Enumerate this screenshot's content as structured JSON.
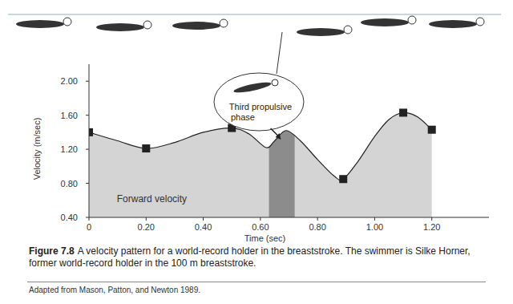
{
  "chart_data": {
    "type": "area",
    "y_label": "Velocity (m/sec)",
    "x_label": "Time (sec)",
    "xlim": [
      0,
      1.4
    ],
    "ylim": [
      0.4,
      2.2
    ],
    "xticks": [
      0,
      {
        "value": 0.2,
        "label": "0.20"
      },
      {
        "value": 0.4,
        "label": "0.40"
      },
      {
        "value": 0.6,
        "label": "0.60"
      },
      {
        "value": 0.8,
        "label": "0.80"
      },
      {
        "value": 1.0,
        "label": "1.00"
      },
      {
        "value": 1.2,
        "label": "1.20"
      }
    ],
    "yticks": [
      {
        "value": 0.4,
        "label": "0.40"
      },
      {
        "value": 0.8,
        "label": "0.80"
      },
      {
        "value": 1.2,
        "label": "1.20"
      },
      {
        "value": 1.6,
        "label": "1.60"
      },
      {
        "value": 2.0,
        "label": "2.00"
      }
    ],
    "grid": false,
    "series": [
      {
        "name": "Forward velocity",
        "type": "area",
        "color": "#d4d4d4",
        "x": [
          0,
          0.1,
          0.2,
          0.3,
          0.4,
          0.5,
          0.56,
          0.62,
          0.65,
          0.69,
          0.74,
          0.8,
          0.86,
          0.89,
          0.94,
          1.0,
          1.05,
          1.1,
          1.15,
          1.2
        ],
        "values": [
          1.4,
          1.3,
          1.21,
          1.28,
          1.4,
          1.45,
          1.38,
          1.22,
          1.3,
          1.42,
          1.3,
          1.08,
          0.88,
          0.85,
          1.05,
          1.35,
          1.55,
          1.63,
          1.58,
          1.43
        ]
      },
      {
        "type": "scatter",
        "marker": "square",
        "color": "#222222",
        "x": [
          0,
          0.2,
          0.5,
          0.89,
          1.1,
          1.2
        ],
        "values": [
          1.4,
          1.21,
          1.45,
          0.85,
          1.63,
          1.43
        ]
      }
    ],
    "annotations": [
      {
        "text": "Third propulsive phase",
        "x": [
          0.63,
          0.72
        ],
        "color": "#8c8c8c"
      }
    ],
    "caption_label": "Figure 7.8",
    "caption": "A velocity pattern for a world-record holder in the breaststroke. The swimmer is Silke Horner, former world-record holder in the 100 m breaststroke.",
    "source": "Adapted from Mason, Patton, and Newton 1989."
  }
}
